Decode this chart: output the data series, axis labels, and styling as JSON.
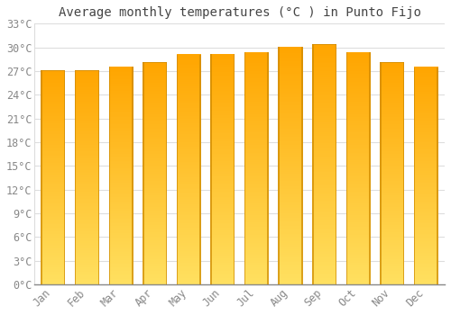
{
  "title": "Average monthly temperatures (°C ) in Punto Fijo",
  "months": [
    "Jan",
    "Feb",
    "Mar",
    "Apr",
    "May",
    "Jun",
    "Jul",
    "Aug",
    "Sep",
    "Oct",
    "Nov",
    "Dec"
  ],
  "values": [
    27.1,
    27.1,
    27.6,
    28.1,
    29.1,
    29.2,
    29.4,
    30.1,
    30.4,
    29.4,
    28.1,
    27.5
  ],
  "bar_color_bottom": "#FFE060",
  "bar_color_top": "#FFA500",
  "bar_edge_color": "#CC8800",
  "background_color": "#FFFFFF",
  "grid_color": "#DDDDDD",
  "tick_label_color": "#888888",
  "title_color": "#444444",
  "ylim": [
    0,
    33
  ],
  "yticks": [
    0,
    3,
    6,
    9,
    12,
    15,
    18,
    21,
    24,
    27,
    30,
    33
  ],
  "title_fontsize": 10,
  "tick_fontsize": 8.5,
  "bar_width": 0.72
}
